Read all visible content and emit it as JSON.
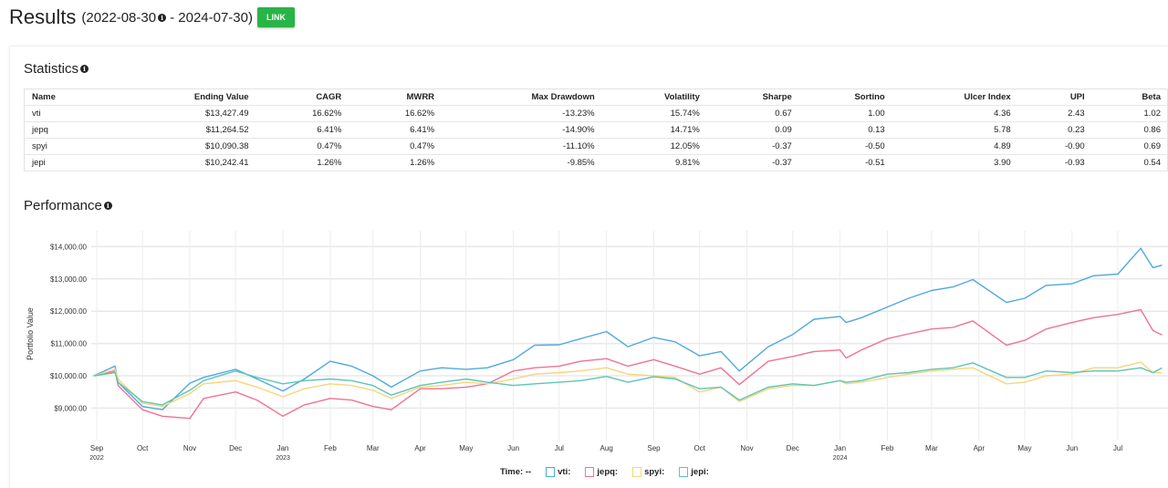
{
  "header": {
    "title": "Results",
    "range_open": "(2022-08-30",
    "range_close": " - 2024-07-30)",
    "link_label": "LINK",
    "accent": "#28b446"
  },
  "statistics": {
    "title": "Statistics",
    "columns": [
      "Name",
      "Ending Value",
      "CAGR",
      "MWRR",
      "Max Drawdown",
      "Volatility",
      "Sharpe",
      "Sortino",
      "Ulcer Index",
      "UPI",
      "Beta"
    ],
    "rows": [
      [
        "vti",
        "$13,427.49",
        "16.62%",
        "16.62%",
        "-13.23%",
        "15.74%",
        "0.67",
        "1.00",
        "4.36",
        "2.43",
        "1.02"
      ],
      [
        "jepq",
        "$11,264.52",
        "6.41%",
        "6.41%",
        "-14.90%",
        "14.71%",
        "0.09",
        "0.13",
        "5.78",
        "0.23",
        "0.86"
      ],
      [
        "spyi",
        "$10,090.38",
        "0.47%",
        "0.47%",
        "-11.10%",
        "12.05%",
        "-0.37",
        "-0.50",
        "4.89",
        "-0.90",
        "0.69"
      ],
      [
        "jepi",
        "$10,242.41",
        "1.26%",
        "1.26%",
        "-9.85%",
        "9.81%",
        "-0.37",
        "-0.51",
        "3.90",
        "-0.93",
        "0.54"
      ]
    ]
  },
  "performance": {
    "title": "Performance"
  },
  "chart_data": {
    "type": "line",
    "ylabel": "Portfolio Value",
    "ylim": [
      8000,
      14500
    ],
    "y_ticks": [
      {
        "value": 9000,
        "label": "$9,000.00"
      },
      {
        "value": 10000,
        "label": "$10,000.00"
      },
      {
        "value": 11000,
        "label": "$11,000.00"
      },
      {
        "value": 12000,
        "label": "$12,000.00"
      },
      {
        "value": 13000,
        "label": "$13,000.00"
      },
      {
        "value": 14000,
        "label": "$14,000.00"
      }
    ],
    "x_ticks": [
      {
        "date": "2022-09-01",
        "label": "Sep",
        "year": "2022"
      },
      {
        "date": "2022-10-01",
        "label": "Oct"
      },
      {
        "date": "2022-11-01",
        "label": "Nov"
      },
      {
        "date": "2022-12-01",
        "label": "Dec"
      },
      {
        "date": "2023-01-01",
        "label": "Jan",
        "year": "2023"
      },
      {
        "date": "2023-02-01",
        "label": "Feb"
      },
      {
        "date": "2023-03-01",
        "label": "Mar"
      },
      {
        "date": "2023-04-01",
        "label": "Apr"
      },
      {
        "date": "2023-05-01",
        "label": "May"
      },
      {
        "date": "2023-06-01",
        "label": "Jun"
      },
      {
        "date": "2023-07-01",
        "label": "Jul"
      },
      {
        "date": "2023-08-01",
        "label": "Aug"
      },
      {
        "date": "2023-09-01",
        "label": "Sep"
      },
      {
        "date": "2023-10-01",
        "label": "Oct"
      },
      {
        "date": "2023-11-01",
        "label": "Nov"
      },
      {
        "date": "2023-12-01",
        "label": "Dec"
      },
      {
        "date": "2024-01-01",
        "label": "Jan",
        "year": "2024"
      },
      {
        "date": "2024-02-01",
        "label": "Feb"
      },
      {
        "date": "2024-03-01",
        "label": "Mar"
      },
      {
        "date": "2024-04-01",
        "label": "Apr"
      },
      {
        "date": "2024-05-01",
        "label": "May"
      },
      {
        "date": "2024-06-01",
        "label": "Jun"
      },
      {
        "date": "2024-07-01",
        "label": "Jul"
      }
    ],
    "grid": true,
    "legend": {
      "position": "bottom",
      "time_label": "Time:",
      "time_value": "--"
    },
    "x": [
      "2022-08-30",
      "2022-09-13",
      "2022-09-15",
      "2022-10-01",
      "2022-10-14",
      "2022-11-01",
      "2022-11-10",
      "2022-12-01",
      "2022-12-15",
      "2023-01-01",
      "2023-01-15",
      "2023-02-01",
      "2023-02-15",
      "2023-03-01",
      "2023-03-13",
      "2023-04-01",
      "2023-04-15",
      "2023-05-01",
      "2023-05-15",
      "2023-06-01",
      "2023-06-15",
      "2023-07-01",
      "2023-07-15",
      "2023-08-01",
      "2023-08-15",
      "2023-09-01",
      "2023-09-15",
      "2023-10-01",
      "2023-10-15",
      "2023-10-27",
      "2023-11-15",
      "2023-12-01",
      "2023-12-15",
      "2024-01-01",
      "2024-01-05",
      "2024-01-15",
      "2024-02-01",
      "2024-02-15",
      "2024-03-01",
      "2024-03-15",
      "2024-03-28",
      "2024-04-19",
      "2024-05-01",
      "2024-05-15",
      "2024-06-01",
      "2024-06-15",
      "2024-07-01",
      "2024-07-16",
      "2024-07-24",
      "2024-07-30"
    ],
    "series": [
      {
        "name": "vti",
        "legend_label": "vti:",
        "color": "#4fa9e0",
        "values": [
          10000,
          10300,
          9800,
          9050,
          8950,
          9770,
          9950,
          10200,
          9900,
          9530,
          9900,
          10450,
          10300,
          10000,
          9650,
          10150,
          10250,
          10200,
          10250,
          10500,
          10950,
          10960,
          11150,
          11370,
          10900,
          11190,
          11050,
          10620,
          10750,
          10150,
          10900,
          11280,
          11750,
          11840,
          11650,
          11800,
          12130,
          12400,
          12640,
          12750,
          12980,
          12270,
          12400,
          12800,
          12850,
          13100,
          13150,
          13950,
          13350,
          13427.49
        ]
      },
      {
        "name": "jepq",
        "legend_label": "jepq:",
        "color": "#ef7392",
        "values": [
          10000,
          10150,
          9700,
          8950,
          8750,
          8680,
          9300,
          9500,
          9250,
          8750,
          9100,
          9300,
          9250,
          9050,
          8950,
          9600,
          9600,
          9650,
          9750,
          10150,
          10250,
          10300,
          10450,
          10530,
          10300,
          10500,
          10300,
          10050,
          10250,
          9730,
          10450,
          10600,
          10750,
          10800,
          10550,
          10800,
          11150,
          11300,
          11450,
          11500,
          11700,
          10950,
          11100,
          11450,
          11650,
          11800,
          11900,
          12050,
          11400,
          11264.52
        ]
      },
      {
        "name": "spyi",
        "legend_label": "spyi:",
        "color": "#f6d57c",
        "values": [
          10000,
          10200,
          9900,
          9150,
          9050,
          9450,
          9750,
          9850,
          9650,
          9350,
          9600,
          9750,
          9700,
          9550,
          9300,
          9650,
          9700,
          9800,
          9750,
          9900,
          10050,
          10100,
          10150,
          10250,
          10050,
          10000,
          9950,
          9500,
          9650,
          9200,
          9600,
          9700,
          9700,
          9850,
          9750,
          9800,
          9950,
          10050,
          10150,
          10200,
          10250,
          9750,
          9800,
          10000,
          10050,
          10250,
          10250,
          10420,
          10100,
          10090.38
        ]
      },
      {
        "name": "jepi",
        "legend_label": "jepi:",
        "color": "#5ec5b6",
        "values": [
          10000,
          10100,
          9800,
          9200,
          9100,
          9550,
          9850,
          10150,
          9950,
          9750,
          9850,
          9900,
          9850,
          9700,
          9400,
          9700,
          9800,
          9900,
          9800,
          9700,
          9750,
          9800,
          9850,
          9980,
          9800,
          9970,
          9900,
          9600,
          9650,
          9250,
          9650,
          9750,
          9700,
          9850,
          9800,
          9850,
          10050,
          10100,
          10200,
          10250,
          10400,
          9950,
          9950,
          10150,
          10100,
          10150,
          10150,
          10250,
          10100,
          10242.41
        ]
      }
    ]
  }
}
